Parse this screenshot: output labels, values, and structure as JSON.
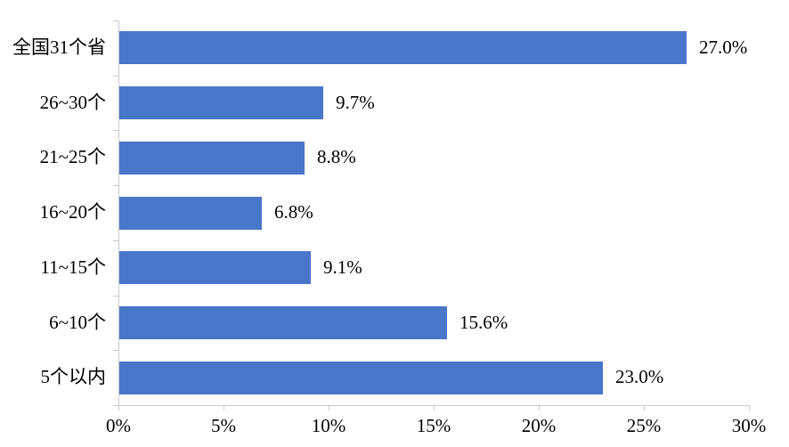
{
  "chart_data": {
    "type": "bar",
    "orientation": "horizontal",
    "title": "",
    "xlabel": "",
    "ylabel": "",
    "categories": [
      "全国31个省",
      "26~30个",
      "21~25个",
      "16~20个",
      "11~15个",
      "6~10个",
      "5个以内"
    ],
    "values": [
      27.0,
      9.7,
      8.8,
      6.8,
      9.1,
      15.6,
      23.0
    ],
    "value_labels": [
      "27.0%",
      "9.7%",
      "8.8%",
      "6.8%",
      "9.1%",
      "15.6%",
      "23.0%"
    ],
    "x_ticks": [
      0,
      5,
      10,
      15,
      20,
      25,
      30
    ],
    "x_tick_labels": [
      "0%",
      "5%",
      "10%",
      "15%",
      "20%",
      "25%",
      "30%"
    ],
    "xlim": [
      0,
      30
    ],
    "grid": false,
    "legend": false,
    "colors": {
      "bar": "#4a76c9",
      "axis": "#c9c9c9",
      "text": "#000000",
      "background": "#ffffff"
    }
  }
}
